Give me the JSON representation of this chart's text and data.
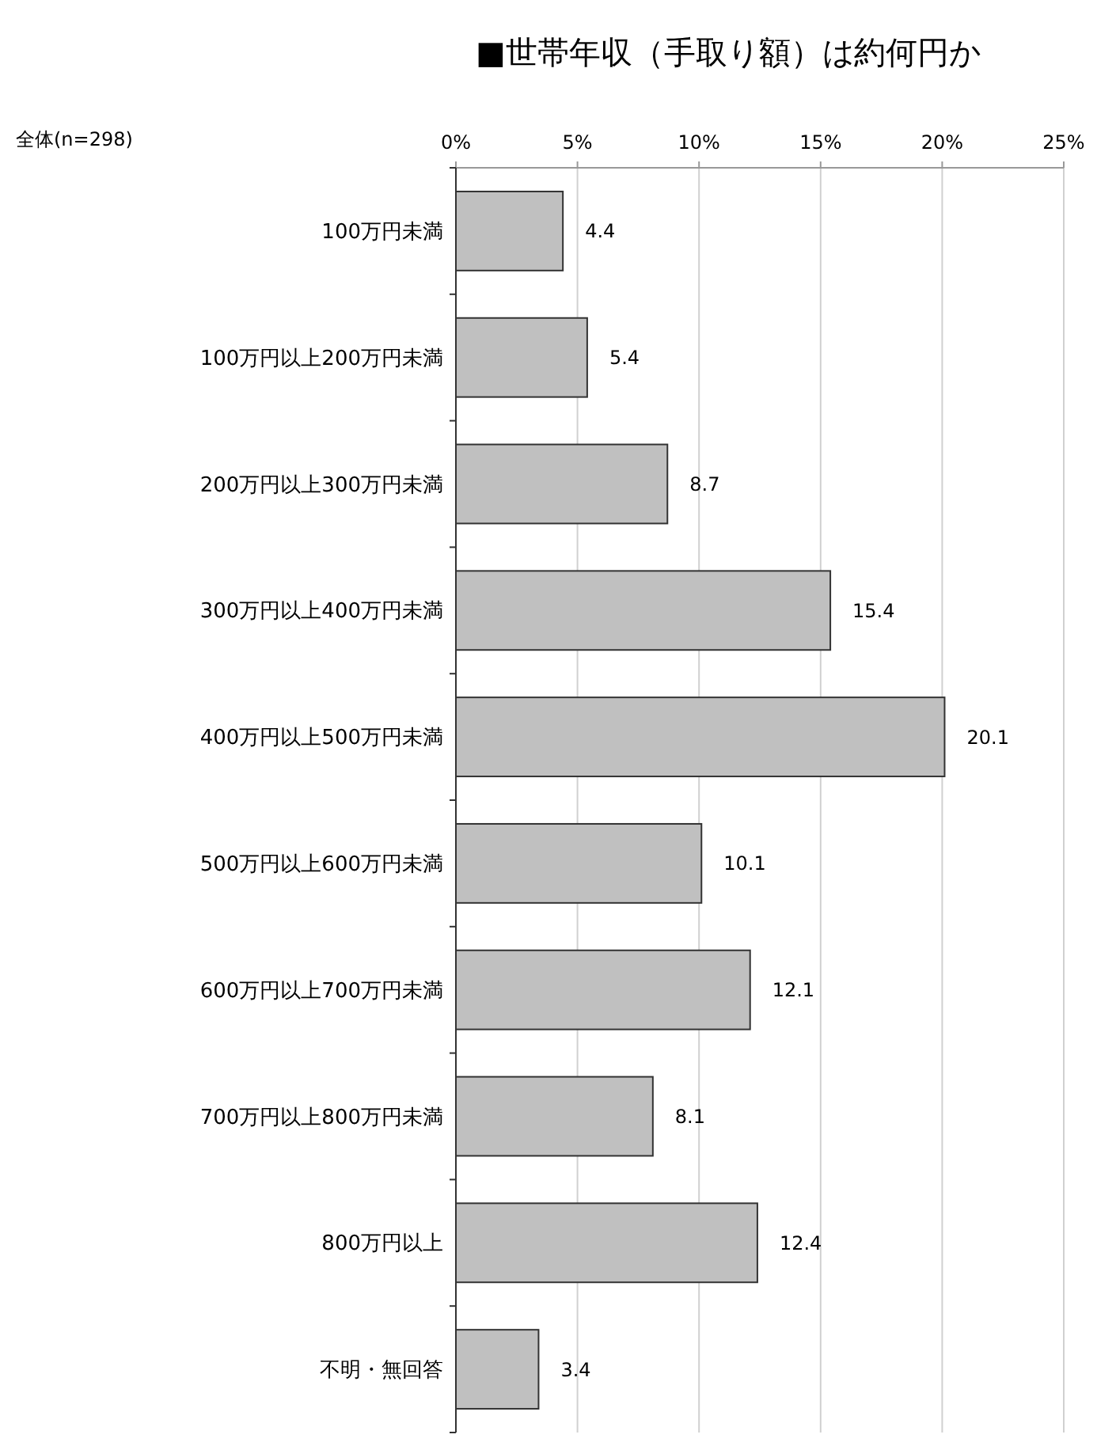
{
  "chart_data": {
    "type": "bar",
    "orientation": "horizontal",
    "title": "■世帯年収（手取り額）は約何円か",
    "ylabel": "全体(n=298)",
    "categories": [
      "100万円未満",
      "100万円以上200万円未満",
      "200万円以上300万円未満",
      "300万円以上400万円未満",
      "400万円以上500万円未満",
      "500万円以上600万円未満",
      "600万円以上700万円未満",
      "700万円以上800万円未満",
      "800万円以上",
      "不明・無回答"
    ],
    "values": [
      4.4,
      5.4,
      8.7,
      15.4,
      20.1,
      10.1,
      12.1,
      8.1,
      12.4,
      3.4
    ],
    "color": "#c0c0c0",
    "xlim": [
      0,
      25
    ],
    "xticks": [
      {
        "value": 0,
        "label": "0%"
      },
      {
        "value": 5,
        "label": "5%"
      },
      {
        "value": 10,
        "label": "10%"
      },
      {
        "value": 15,
        "label": "15%"
      },
      {
        "value": 20,
        "label": "20%"
      },
      {
        "value": 25,
        "label": "25%"
      }
    ],
    "grid": "x",
    "data_labels": true
  }
}
